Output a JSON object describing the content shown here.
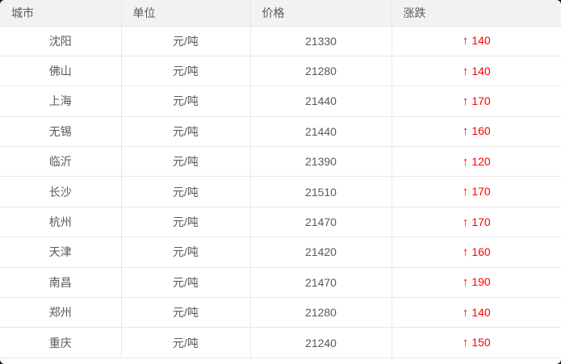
{
  "table": {
    "headers": [
      {
        "key": "city",
        "label": "城市"
      },
      {
        "key": "unit",
        "label": "单位"
      },
      {
        "key": "price",
        "label": "价格"
      },
      {
        "key": "change",
        "label": "涨跌"
      }
    ],
    "rows": [
      {
        "city": "沈阳",
        "unit": "元/吨",
        "price": "21330",
        "change": "140",
        "direction": "up"
      },
      {
        "city": "佛山",
        "unit": "元/吨",
        "price": "21280",
        "change": "140",
        "direction": "up"
      },
      {
        "city": "上海",
        "unit": "元/吨",
        "price": "21440",
        "change": "170",
        "direction": "up"
      },
      {
        "city": "无锡",
        "unit": "元/吨",
        "price": "21440",
        "change": "160",
        "direction": "up"
      },
      {
        "city": "临沂",
        "unit": "元/吨",
        "price": "21390",
        "change": "120",
        "direction": "up"
      },
      {
        "city": "长沙",
        "unit": "元/吨",
        "price": "21510",
        "change": "170",
        "direction": "up"
      },
      {
        "city": "杭州",
        "unit": "元/吨",
        "price": "21470",
        "change": "170",
        "direction": "up"
      },
      {
        "city": "天津",
        "unit": "元/吨",
        "price": "21420",
        "change": "160",
        "direction": "up"
      },
      {
        "city": "南昌",
        "unit": "元/吨",
        "price": "21470",
        "change": "190",
        "direction": "up"
      },
      {
        "city": "郑州",
        "unit": "元/吨",
        "price": "21280",
        "change": "140",
        "direction": "up"
      },
      {
        "city": "重庆",
        "unit": "元/吨",
        "price": "21240",
        "change": "150",
        "direction": "up"
      }
    ],
    "up_arrow_glyph": "↑",
    "colors": {
      "up": "#fe0000",
      "header_bg": "#f2f2f2",
      "header_text": "#5a5a5a",
      "body_text": "#595959",
      "border": "#e8e8e8",
      "card_bg": "#ffffff",
      "page_bg": "#161616"
    }
  }
}
